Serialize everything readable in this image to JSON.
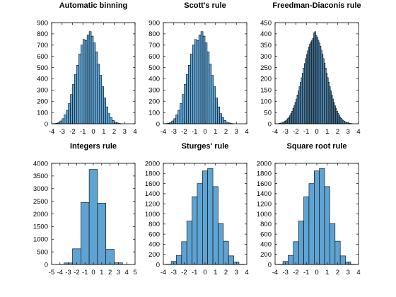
{
  "colors": {
    "bar_fill": "#5fa3d3",
    "bar_edge": "#000000",
    "background": "#ffffff"
  },
  "chart_data": [
    {
      "type": "bar",
      "title": "Automatic binning",
      "xlim": [
        -4,
        4
      ],
      "ylim": [
        0,
        900
      ],
      "xticks": [
        -4,
        -3,
        -2,
        -1,
        0,
        1,
        2,
        3,
        4
      ],
      "yticks": [
        0,
        100,
        200,
        300,
        400,
        500,
        600,
        700,
        800,
        900
      ],
      "bin_width": 0.2,
      "bin_edges_start": -3.8,
      "values": [
        2,
        5,
        12,
        25,
        45,
        80,
        120,
        180,
        260,
        350,
        440,
        520,
        620,
        700,
        750,
        740,
        790,
        820,
        780,
        720,
        640,
        530,
        430,
        330,
        230,
        150,
        90,
        55,
        30,
        15,
        8,
        3,
        1
      ]
    },
    {
      "type": "bar",
      "title": "Scott's rule",
      "xlim": [
        -4,
        4
      ],
      "ylim": [
        0,
        900
      ],
      "xticks": [
        -4,
        -3,
        -2,
        -1,
        0,
        1,
        2,
        3,
        4
      ],
      "yticks": [
        0,
        100,
        200,
        300,
        400,
        500,
        600,
        700,
        800,
        900
      ],
      "bin_width": 0.2,
      "bin_edges_start": -3.8,
      "values": [
        2,
        5,
        12,
        25,
        45,
        80,
        120,
        180,
        260,
        350,
        440,
        520,
        620,
        700,
        750,
        740,
        790,
        820,
        780,
        720,
        640,
        530,
        430,
        330,
        230,
        150,
        90,
        55,
        30,
        15,
        8,
        3,
        1
      ]
    },
    {
      "type": "bar",
      "title": "Freedman-Diaconis rule",
      "xlim": [
        -4,
        4
      ],
      "ylim": [
        0,
        450
      ],
      "xticks": [
        -4,
        -3,
        -2,
        -1,
        0,
        1,
        2,
        3,
        4
      ],
      "yticks": [
        0,
        50,
        100,
        150,
        200,
        250,
        300,
        350,
        400,
        450
      ],
      "bin_width": 0.1,
      "bin_edges_start": -3.7,
      "values": [
        1,
        2,
        3,
        4,
        6,
        8,
        11,
        14,
        18,
        24,
        30,
        38,
        46,
        56,
        68,
        80,
        95,
        110,
        128,
        146,
        165,
        185,
        205,
        225,
        248,
        268,
        290,
        308,
        325,
        342,
        355,
        365,
        372,
        380,
        405,
        410,
        392,
        385,
        372,
        360,
        345,
        328,
        310,
        290,
        270,
        248,
        225,
        205,
        185,
        165,
        146,
        128,
        110,
        95,
        80,
        68,
        56,
        46,
        38,
        30,
        24,
        18,
        14,
        11,
        8,
        6,
        4,
        3,
        2,
        1,
        1
      ]
    },
    {
      "type": "bar",
      "title": "Integers rule",
      "xlim": [
        -5,
        5
      ],
      "ylim": [
        0,
        4000
      ],
      "xticks": [
        -5,
        -4,
        -3,
        -2,
        -1,
        0,
        1,
        2,
        3,
        4,
        5
      ],
      "yticks": [
        0,
        500,
        1000,
        1500,
        2000,
        2500,
        3000,
        3500,
        4000
      ],
      "bin_width": 1,
      "bin_edges_start": -4.5,
      "values": [
        5,
        60,
        620,
        2450,
        3760,
        2420,
        600,
        65,
        5
      ]
    },
    {
      "type": "bar",
      "title": "Sturges' rule",
      "xlim": [
        -4,
        4
      ],
      "ylim": [
        0,
        2000
      ],
      "xticks": [
        -4,
        -3,
        -2,
        -1,
        0,
        1,
        2,
        3,
        4
      ],
      "yticks": [
        0,
        200,
        400,
        600,
        800,
        1000,
        1200,
        1400,
        1600,
        1800,
        2000
      ],
      "bin_width": 0.5,
      "bin_edges_start": -3.75,
      "values": [
        5,
        60,
        180,
        450,
        860,
        1340,
        1600,
        1850,
        1900,
        1540,
        810,
        460,
        170,
        50,
        5
      ]
    },
    {
      "type": "bar",
      "title": "Square root rule",
      "xlim": [
        -4,
        4
      ],
      "ylim": [
        0,
        2000
      ],
      "xticks": [
        -4,
        -3,
        -2,
        -1,
        0,
        1,
        2,
        3,
        4
      ],
      "yticks": [
        0,
        200,
        400,
        600,
        800,
        1000,
        1200,
        1400,
        1600,
        1800,
        2000
      ],
      "bin_width": 0.5,
      "bin_edges_start": -3.75,
      "values": [
        5,
        60,
        180,
        450,
        860,
        1340,
        1600,
        1850,
        1900,
        1540,
        810,
        460,
        170,
        50,
        5
      ]
    }
  ]
}
